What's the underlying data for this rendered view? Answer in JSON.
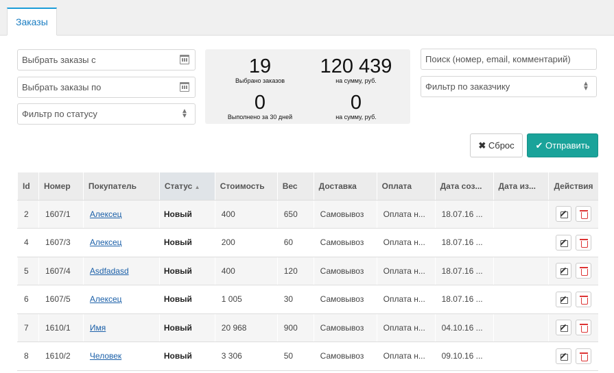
{
  "tab": {
    "label": "Заказы"
  },
  "filters": {
    "date_from": "Выбрать заказы с",
    "date_to": "Выбрать заказы по",
    "status": "Фильтр по статусу",
    "search": "Поиск (номер, email, комментарий)",
    "customer": "Фильтр по заказчику"
  },
  "stats": {
    "selected_count": "19",
    "selected_label": "Выбрано заказов",
    "selected_sum": "120 439",
    "selected_sum_label": "на сумму, руб.",
    "done_count": "0",
    "done_label": "Выполнено за 30 дней",
    "done_sum": "0",
    "done_sum_label": "на сумму, руб."
  },
  "buttons": {
    "reset": "Сброс",
    "send": "Отправить"
  },
  "table": {
    "headers": [
      "Id",
      "Номер",
      "Покупатель",
      "Статус",
      "Стоимость",
      "Вес",
      "Доставка",
      "Оплата",
      "Дата соз...",
      "Дата из...",
      "Действия"
    ],
    "rows": [
      [
        "2",
        "1607/1",
        "Алексец",
        "Новый",
        "400",
        "650",
        "Самовывоз",
        "Оплата н...",
        "18.07.16 ...",
        ""
      ],
      [
        "4",
        "1607/3",
        "Алексец",
        "Новый",
        "200",
        "60",
        "Самовывоз",
        "Оплата н...",
        "18.07.16 ...",
        ""
      ],
      [
        "5",
        "1607/4",
        "Asdfadasd",
        "Новый",
        "400",
        "120",
        "Самовывоз",
        "Оплата н...",
        "18.07.16 ...",
        ""
      ],
      [
        "6",
        "1607/5",
        "Алексец",
        "Новый",
        "1 005",
        "30",
        "Самовывоз",
        "Оплата н...",
        "18.07.16 ...",
        ""
      ],
      [
        "7",
        "1610/1",
        "Имя",
        "Новый",
        "20 968",
        "900",
        "Самовывоз",
        "Оплата н...",
        "04.10.16 ...",
        ""
      ],
      [
        "8",
        "1610/2",
        "Человек",
        "Новый",
        "3 306",
        "50",
        "Самовывоз",
        "Оплата н...",
        "09.10.16 ...",
        ""
      ]
    ]
  }
}
